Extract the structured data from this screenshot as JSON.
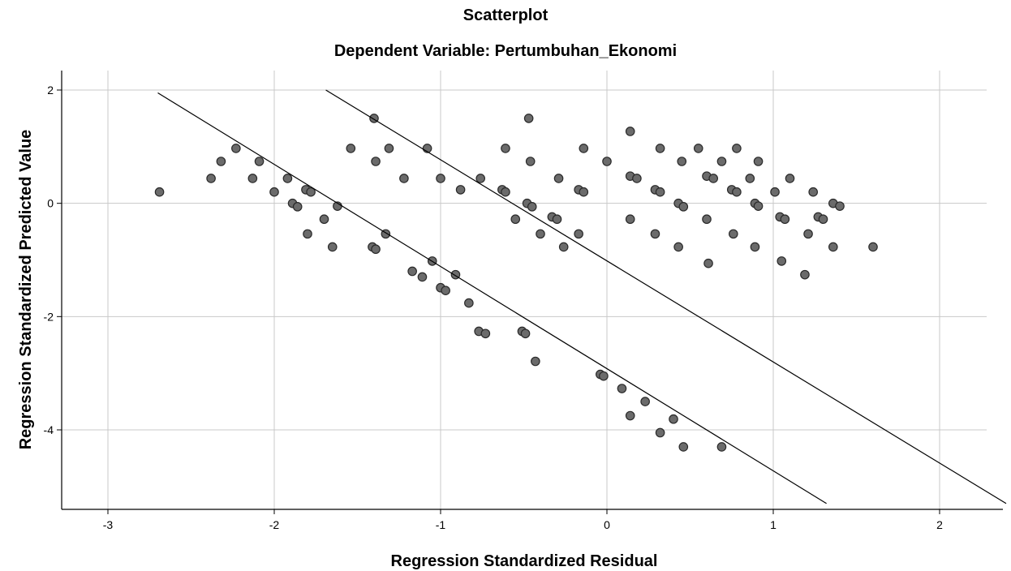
{
  "chart_data": {
    "type": "scatter",
    "title": "Scatterplot",
    "subtitle": "Dependent Variable: Pertumbuhan_Ekonomi",
    "xlabel": "Regression Standardized Residual",
    "ylabel": "Regression Standardized Predicted Value",
    "xlim": [
      -3.3,
      2.4
    ],
    "ylim": [
      -5.3,
      2.4
    ],
    "xticks": [
      -3,
      -2,
      -1,
      0,
      1,
      2
    ],
    "yticks": [
      2,
      0,
      -2,
      -4
    ],
    "grid": true,
    "marker_color": "#6b6b6b",
    "marker_edge": "#2a2a2a",
    "reference_lines": [
      {
        "x1": -2.7,
        "y1": 1.95,
        "x2": 1.32,
        "y2": -5.3
      },
      {
        "x1": -1.69,
        "y1": 2.0,
        "x2": 2.4,
        "y2": -5.3
      }
    ],
    "points": [
      [
        -2.69,
        0.2
      ],
      [
        -2.38,
        0.44
      ],
      [
        -2.32,
        0.74
      ],
      [
        -2.23,
        0.97
      ],
      [
        -2.13,
        0.44
      ],
      [
        -2.09,
        0.74
      ],
      [
        -2.0,
        0.2
      ],
      [
        -1.92,
        0.44
      ],
      [
        -1.89,
        0.0
      ],
      [
        -1.86,
        -0.06
      ],
      [
        -1.81,
        0.24
      ],
      [
        -1.8,
        -0.54
      ],
      [
        -1.78,
        0.2
      ],
      [
        -1.7,
        -0.28
      ],
      [
        -1.65,
        -0.77
      ],
      [
        -1.62,
        -0.05
      ],
      [
        -1.54,
        0.97
      ],
      [
        -1.4,
        1.5
      ],
      [
        -1.39,
        0.74
      ],
      [
        -1.41,
        -0.77
      ],
      [
        -1.39,
        -0.81
      ],
      [
        -1.33,
        -0.54
      ],
      [
        -1.31,
        0.97
      ],
      [
        -1.22,
        0.44
      ],
      [
        -1.17,
        -1.2
      ],
      [
        -1.11,
        -1.3
      ],
      [
        -1.08,
        0.97
      ],
      [
        -1.05,
        -1.02
      ],
      [
        -1.0,
        0.44
      ],
      [
        -1.0,
        -1.49
      ],
      [
        -0.97,
        -1.54
      ],
      [
        -0.91,
        -1.26
      ],
      [
        -0.88,
        0.24
      ],
      [
        -0.83,
        -1.76
      ],
      [
        -0.76,
        0.44
      ],
      [
        -0.77,
        -2.26
      ],
      [
        -0.73,
        -2.3
      ],
      [
        -0.63,
        0.24
      ],
      [
        -0.61,
        0.2
      ],
      [
        -0.61,
        0.97
      ],
      [
        -0.55,
        -0.28
      ],
      [
        -0.51,
        -2.26
      ],
      [
        -0.49,
        -2.3
      ],
      [
        -0.48,
        0.0
      ],
      [
        -0.47,
        1.5
      ],
      [
        -0.46,
        0.74
      ],
      [
        -0.45,
        -0.06
      ],
      [
        -0.43,
        -2.79
      ],
      [
        -0.4,
        -0.54
      ],
      [
        -0.33,
        -0.24
      ],
      [
        -0.3,
        -0.28
      ],
      [
        -0.29,
        0.44
      ],
      [
        -0.26,
        -0.77
      ],
      [
        -0.17,
        0.24
      ],
      [
        -0.17,
        -0.54
      ],
      [
        -0.14,
        0.97
      ],
      [
        -0.14,
        0.2
      ],
      [
        -0.04,
        -3.02
      ],
      [
        -0.02,
        -3.05
      ],
      [
        0.0,
        0.74
      ],
      [
        0.09,
        -3.27
      ],
      [
        0.14,
        -3.75
      ],
      [
        0.14,
        1.27
      ],
      [
        0.14,
        0.48
      ],
      [
        0.14,
        -0.28
      ],
      [
        0.18,
        0.44
      ],
      [
        0.23,
        -3.5
      ],
      [
        0.29,
        0.24
      ],
      [
        0.29,
        -0.54
      ],
      [
        0.32,
        0.97
      ],
      [
        0.32,
        0.2
      ],
      [
        0.32,
        -4.05
      ],
      [
        0.4,
        -3.81
      ],
      [
        0.43,
        0.0
      ],
      [
        0.43,
        -0.77
      ],
      [
        0.45,
        0.74
      ],
      [
        0.46,
        -0.06
      ],
      [
        0.46,
        -4.3
      ],
      [
        0.55,
        0.97
      ],
      [
        0.6,
        0.48
      ],
      [
        0.6,
        -0.28
      ],
      [
        0.61,
        -1.06
      ],
      [
        0.64,
        0.44
      ],
      [
        0.69,
        0.74
      ],
      [
        0.69,
        -4.3
      ],
      [
        0.75,
        0.24
      ],
      [
        0.76,
        -0.54
      ],
      [
        0.78,
        0.2
      ],
      [
        0.78,
        0.97
      ],
      [
        0.86,
        0.44
      ],
      [
        0.89,
        0.0
      ],
      [
        0.89,
        -0.77
      ],
      [
        0.91,
        0.74
      ],
      [
        0.91,
        -0.05
      ],
      [
        1.01,
        0.2
      ],
      [
        1.04,
        -0.24
      ],
      [
        1.05,
        -1.02
      ],
      [
        1.07,
        -0.28
      ],
      [
        1.1,
        0.44
      ],
      [
        1.19,
        -1.26
      ],
      [
        1.21,
        -0.54
      ],
      [
        1.24,
        0.2
      ],
      [
        1.27,
        -0.24
      ],
      [
        1.3,
        -0.28
      ],
      [
        1.36,
        0.0
      ],
      [
        1.36,
        -0.77
      ],
      [
        1.4,
        -0.05
      ],
      [
        1.6,
        -0.77
      ]
    ]
  }
}
